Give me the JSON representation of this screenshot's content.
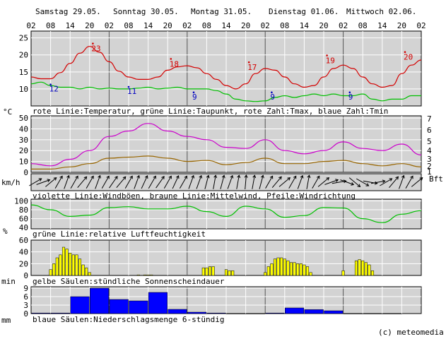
{
  "days": [
    "Samstag 29.05.",
    "Sonntag 30.05.",
    "Montag 31.05.",
    "Dienstag 01.06.",
    "Mittwoch 02.06."
  ],
  "hours": [
    "02",
    "08",
    "14",
    "20",
    "02",
    "08",
    "14",
    "20",
    "02",
    "08",
    "14",
    "20",
    "02",
    "08",
    "14",
    "20",
    "02",
    "08",
    "14",
    "20",
    "02"
  ],
  "colors": {
    "panel_bg": "#d3d3d3",
    "temp": "#d40000",
    "dew": "#00c000",
    "gust": "#cc00cc",
    "wind": "#996600",
    "sun": "#ffff00",
    "precip": "#0000ff",
    "tmin_label": "#0000c0"
  },
  "panel1": {
    "unit": "°C",
    "caption": "rote Linie:Temperatur, grüne Linie:Taupunkt, rote Zahl:Tmax, blaue Zahl:Tmin",
    "yticks": [
      "25",
      "20",
      "15",
      "10"
    ]
  },
  "panel2": {
    "unit": "km/h",
    "unit_right": "Bft",
    "caption": "violette Linie:Windböen, braune Linie:Mittelwind, Pfeile:Windrichtung",
    "yticks": [
      "50",
      "40",
      "30",
      "20",
      "10",
      "0"
    ],
    "bft_ticks": [
      "7",
      "6",
      "5",
      "4",
      "3",
      "2",
      "1"
    ]
  },
  "panel3": {
    "unit": "%",
    "caption": "grüne Linie:relative Luftfeuchtigkeit",
    "yticks": [
      "100",
      "80",
      "60",
      "40"
    ]
  },
  "panel4": {
    "unit": "min",
    "caption": "gelbe Säulen:stündliche Sonnenscheindauer",
    "yticks": [
      "60",
      "40",
      "20",
      "0"
    ]
  },
  "panel5": {
    "unit": "mm",
    "caption": "blaue Säulen:Niederschlagsmenge 6-stündig",
    "yticks": [
      "9",
      "6",
      "3",
      "0"
    ]
  },
  "copyright": "(c) meteomedia",
  "chart_data": [
    {
      "type": "line",
      "xlabel": "",
      "ylabel": "°C",
      "ylim": [
        5,
        25
      ],
      "x_hours": [
        0,
        3,
        6,
        9,
        12,
        15,
        18,
        21,
        24,
        27,
        30,
        33,
        36,
        39,
        42,
        45,
        48,
        51,
        54,
        57,
        60,
        63,
        66,
        69,
        72,
        75,
        78,
        81,
        84,
        87,
        90,
        93,
        96,
        99,
        102,
        105,
        108,
        111,
        114,
        117,
        120
      ],
      "series": [
        {
          "values": [
            13.5,
            13,
            13,
            14.8,
            17.5,
            20.5,
            22.5,
            20.8,
            18,
            15.2,
            13.5,
            12.8,
            12.8,
            13.5,
            15.5,
            16.5,
            16.8,
            16.2,
            14.5,
            12.8,
            11,
            10,
            11.5,
            14.5,
            16,
            15.5,
            13.5,
            11.5,
            10.5,
            11,
            13.5,
            16,
            17,
            16,
            13.5,
            11.5,
            10.5,
            11,
            14.5,
            17,
            18.5
          ]
        },
        {
          "values": [
            11.5,
            12,
            11,
            10.5,
            10.5,
            10,
            10.5,
            10,
            10.2,
            10,
            10,
            10.2,
            10.5,
            10,
            10.2,
            10.5,
            10,
            10,
            10,
            9.5,
            8.5,
            7,
            6.5,
            6.3,
            6.5,
            7.5,
            8,
            7.5,
            8,
            8.5,
            8,
            8.5,
            8,
            8,
            8.5,
            7,
            6.5,
            7,
            7,
            8,
            8
          ]
        }
      ],
      "annotations": {
        "tmax": [
          "23",
          "18",
          "17",
          "19",
          "20"
        ],
        "tmin": [
          "12",
          "11",
          "9",
          "9",
          "9"
        ]
      }
    },
    {
      "type": "line",
      "xlabel": "",
      "ylabel": "km/h",
      "ylim": [
        0,
        50
      ],
      "x_hours": [
        0,
        6,
        12,
        18,
        24,
        30,
        36,
        42,
        48,
        54,
        60,
        66,
        72,
        78,
        84,
        90,
        96,
        102,
        108,
        114,
        120
      ],
      "series": [
        {
          "values": [
            8,
            6,
            12,
            20,
            33,
            38,
            45,
            38,
            33,
            30,
            23,
            22,
            30,
            20,
            17,
            20,
            28,
            22,
            20,
            26,
            16
          ]
        },
        {
          "values": [
            3,
            3,
            5,
            8,
            13,
            14,
            15,
            13,
            10,
            11,
            7,
            9,
            13,
            8,
            8,
            10,
            11,
            8,
            6,
            8,
            5
          ]
        }
      ]
    },
    {
      "type": "line",
      "xlabel": "",
      "ylabel": "%",
      "ylim": [
        40,
        100
      ],
      "x_hours": [
        0,
        6,
        12,
        18,
        24,
        30,
        36,
        42,
        48,
        54,
        60,
        66,
        72,
        78,
        84,
        90,
        96,
        102,
        108,
        114,
        120
      ],
      "series": [
        {
          "values": [
            91,
            80,
            65,
            68,
            85,
            87,
            82,
            82,
            88,
            76,
            65,
            88,
            82,
            63,
            67,
            85,
            84,
            60,
            51,
            70,
            78
          ]
        }
      ]
    },
    {
      "type": "bar",
      "xlabel": "",
      "ylabel": "min",
      "ylim": [
        0,
        60
      ],
      "x_hours": [
        6,
        7,
        8,
        9,
        10,
        11,
        12,
        13,
        14,
        15,
        16,
        17,
        18,
        33,
        35,
        36,
        37,
        53,
        54,
        55,
        56,
        60,
        61,
        62,
        72,
        73,
        74,
        75,
        76,
        77,
        78,
        79,
        80,
        81,
        82,
        83,
        84,
        85,
        86,
        96,
        100,
        101,
        102,
        103,
        104,
        105
      ],
      "values": [
        10,
        20,
        30,
        35,
        48,
        45,
        38,
        35,
        35,
        28,
        18,
        13,
        5,
        1,
        1,
        1,
        1,
        13,
        13,
        15,
        15,
        10,
        8,
        8,
        5,
        15,
        20,
        28,
        30,
        30,
        28,
        25,
        22,
        22,
        20,
        20,
        18,
        15,
        5,
        8,
        25,
        27,
        25,
        22,
        18,
        8
      ]
    },
    {
      "type": "bar",
      "xlabel": "",
      "ylabel": "mm",
      "ylim": [
        0,
        9
      ],
      "x_hours": [
        6,
        12,
        18,
        24,
        30,
        36,
        42,
        48,
        54,
        60,
        66,
        72,
        78,
        84,
        90,
        96,
        102,
        108,
        114
      ],
      "values": [
        0.2,
        0.2,
        6,
        9,
        5,
        4.5,
        7.5,
        1.5,
        0.5,
        0.2,
        0,
        0,
        0.2,
        2,
        1.4,
        1,
        0,
        0,
        0
      ]
    }
  ]
}
